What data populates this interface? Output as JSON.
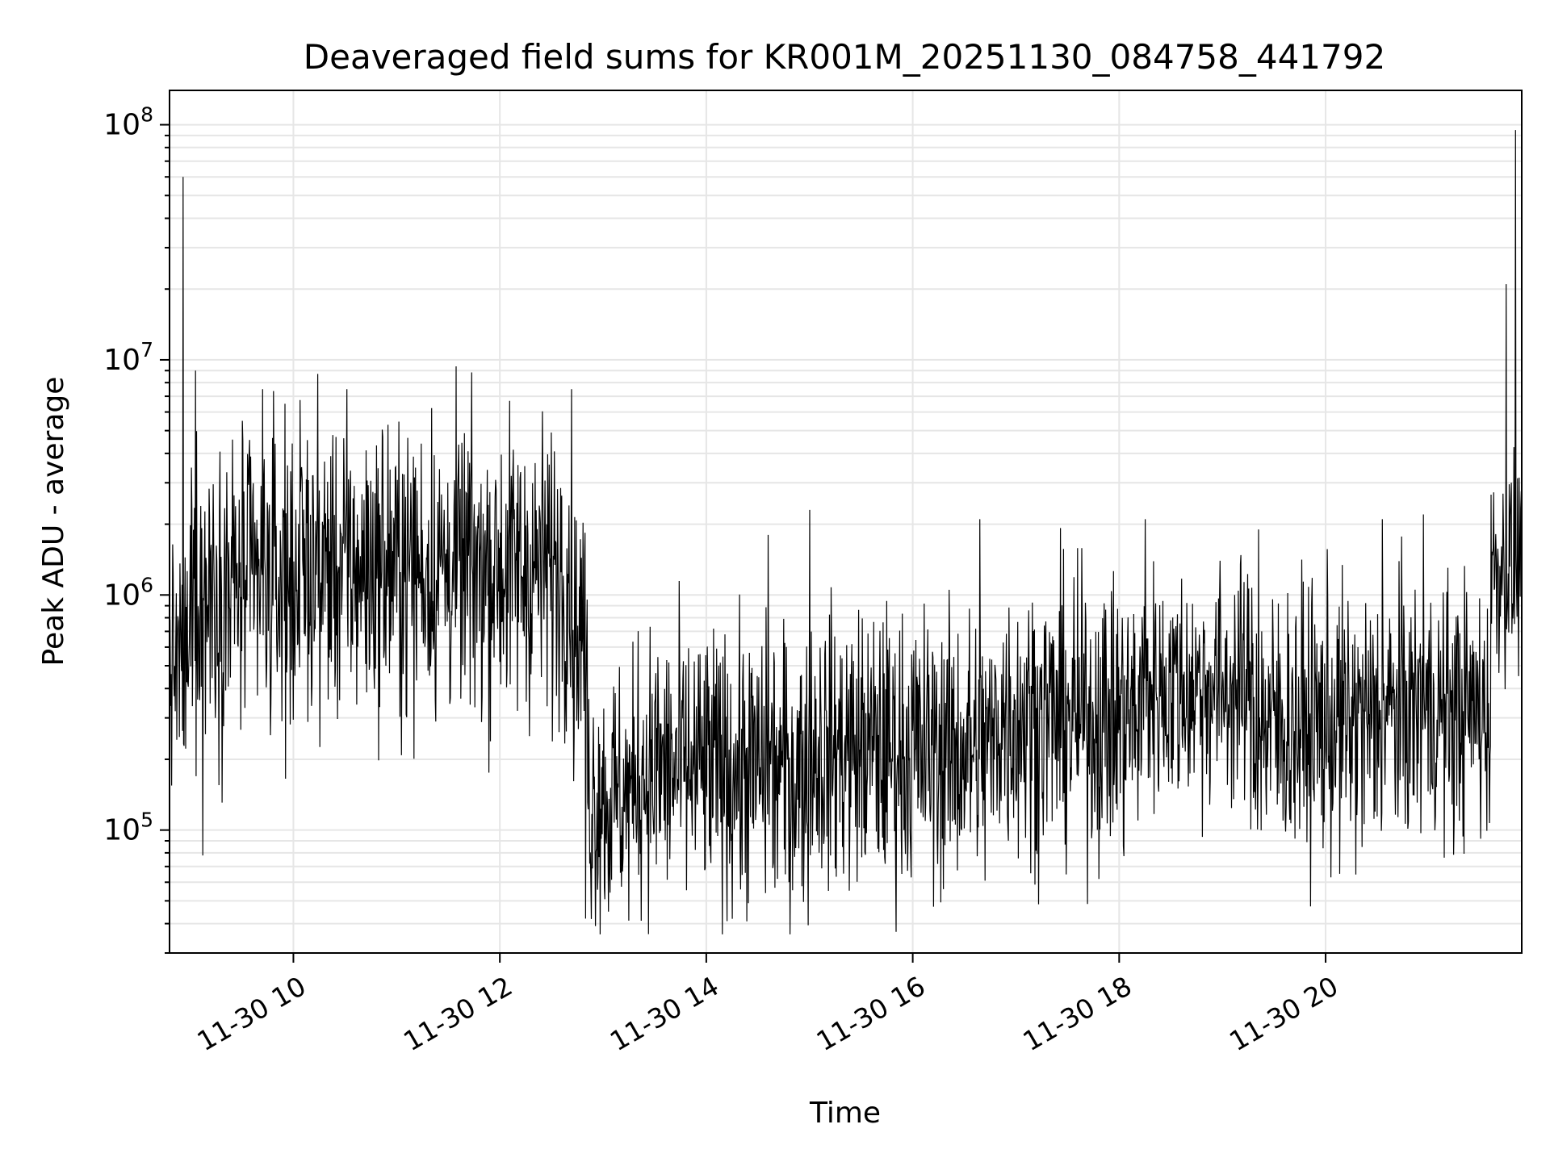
{
  "chart_data": {
    "type": "line",
    "title": "Deaveraged field sums for KR001M_20251130_084758_441792",
    "xlabel": "Time",
    "ylabel": "Peak ADU - average",
    "yscale": "log",
    "xlim": [
      8.8,
      21.9
    ],
    "ylim": [
      30000,
      140000000
    ],
    "grid": true,
    "x_ticks": [
      {
        "value": 10,
        "label": "11-30 10"
      },
      {
        "value": 12,
        "label": "11-30 12"
      },
      {
        "value": 14,
        "label": "11-30 14"
      },
      {
        "value": 16,
        "label": "11-30 16"
      },
      {
        "value": 18,
        "label": "11-30 18"
      },
      {
        "value": 20,
        "label": "11-30 20"
      }
    ],
    "y_ticks": [
      {
        "value": 100000,
        "base": "10",
        "exp": "5"
      },
      {
        "value": 1000000,
        "base": "10",
        "exp": "6"
      },
      {
        "value": 10000000,
        "base": "10",
        "exp": "7"
      },
      {
        "value": 100000000,
        "base": "10",
        "exp": "8"
      }
    ],
    "line_color": "#000000",
    "series": [
      {
        "name": "Peak ADU - average",
        "segments": [
          {
            "x0": 8.8,
            "x1": 9.0,
            "center": 500000,
            "spread": 0.25
          },
          {
            "x0": 9.0,
            "x1": 10.0,
            "center": 1100000,
            "spread": 0.33
          },
          {
            "x0": 10.0,
            "x1": 12.7,
            "center": 1300000,
            "spread": 0.32
          },
          {
            "x0": 12.7,
            "x1": 12.85,
            "center": 700000,
            "spread": 0.3
          },
          {
            "x0": 12.85,
            "x1": 13.3,
            "center": 140000,
            "spread": 0.28
          },
          {
            "x0": 13.3,
            "x1": 15.0,
            "center": 180000,
            "spread": 0.3
          },
          {
            "x0": 15.0,
            "x1": 16.8,
            "center": 220000,
            "spread": 0.3
          },
          {
            "x0": 16.8,
            "x1": 18.2,
            "center": 300000,
            "spread": 0.3
          },
          {
            "x0": 18.2,
            "x1": 19.3,
            "center": 400000,
            "spread": 0.26
          },
          {
            "x0": 19.3,
            "x1": 20.5,
            "center": 280000,
            "spread": 0.3
          },
          {
            "x0": 20.5,
            "x1": 21.6,
            "center": 320000,
            "spread": 0.28
          },
          {
            "x0": 21.6,
            "x1": 21.9,
            "center": 1300000,
            "spread": 0.22
          }
        ],
        "spikes": [
          {
            "x": 8.93,
            "y": 60000000
          },
          {
            "x": 9.05,
            "y": 9000000
          },
          {
            "x": 9.7,
            "y": 7500000
          },
          {
            "x": 9.92,
            "y": 6500000
          },
          {
            "x": 14.6,
            "y": 1800000
          },
          {
            "x": 15.0,
            "y": 2300000
          },
          {
            "x": 16.65,
            "y": 2100000
          },
          {
            "x": 18.25,
            "y": 2100000
          },
          {
            "x": 19.35,
            "y": 1900000
          },
          {
            "x": 20.55,
            "y": 2100000
          },
          {
            "x": 20.95,
            "y": 2200000
          },
          {
            "x": 21.75,
            "y": 21000000
          },
          {
            "x": 21.84,
            "y": 95000000
          },
          {
            "x": 12.83,
            "y": 42000
          },
          {
            "x": 13.05,
            "y": 45000
          },
          {
            "x": 9.12,
            "y": 78000
          },
          {
            "x": 14.8,
            "y": 60000
          }
        ]
      }
    ]
  }
}
